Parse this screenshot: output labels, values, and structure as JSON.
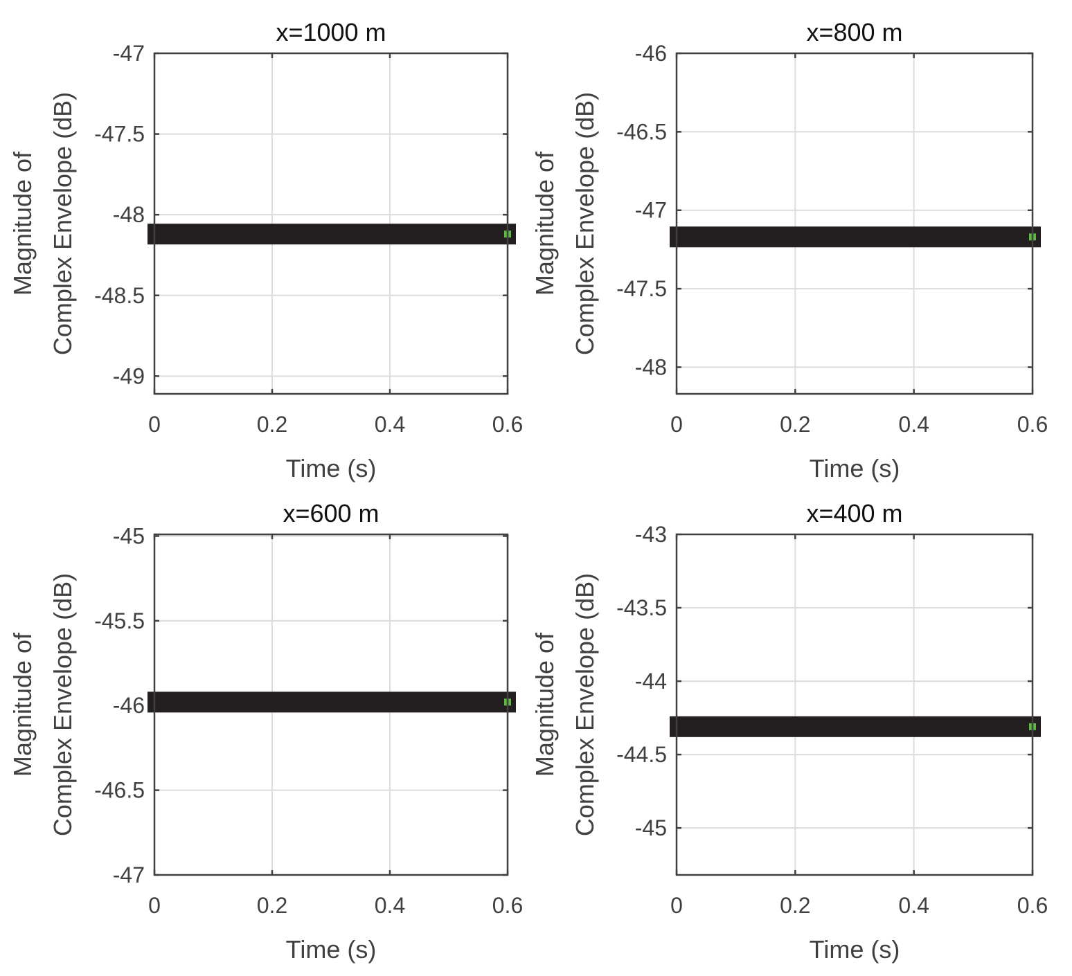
{
  "chart_data": [
    {
      "type": "line",
      "title": "x=1000 m",
      "xlabel": "Time (s)",
      "ylabel_lines": [
        "Magnitude of",
        "Complex Envelope (dB)"
      ],
      "xlim": [
        0,
        0.6
      ],
      "ylim": [
        -49.11,
        -47
      ],
      "xticks": [
        0,
        0.2,
        0.4,
        0.6
      ],
      "xtick_labels": [
        "0",
        "0.2",
        "0.4",
        "0.6"
      ],
      "yticks": [
        -47,
        -47.5,
        -48,
        -48.5,
        -49
      ],
      "ytick_labels": [
        "-47",
        "-47.5",
        "-48",
        "-48.5",
        "-49"
      ],
      "grid": true,
      "series": [
        {
          "name": "envelope",
          "color": "#231f20",
          "x": [
            0,
            0.6
          ],
          "y": [
            -48.12,
            -48.12
          ]
        },
        {
          "name": "marker",
          "color": "#5cb83f",
          "x": [
            0.6
          ],
          "y": [
            -48.12
          ]
        }
      ]
    },
    {
      "type": "line",
      "title": "x=800 m",
      "xlabel": "Time (s)",
      "ylabel_lines": [
        "Magnitude of",
        "Complex Envelope (dB)"
      ],
      "xlim": [
        0,
        0.6
      ],
      "ylim": [
        -48.17,
        -46
      ],
      "xticks": [
        0,
        0.2,
        0.4,
        0.6
      ],
      "xtick_labels": [
        "0",
        "0.2",
        "0.4",
        "0.6"
      ],
      "yticks": [
        -46,
        -46.5,
        -47,
        -47.5,
        -48
      ],
      "ytick_labels": [
        "-46",
        "-46.5",
        "-47",
        "-47.5",
        "-48"
      ],
      "grid": true,
      "series": [
        {
          "name": "envelope",
          "color": "#231f20",
          "x": [
            0,
            0.6
          ],
          "y": [
            -47.17,
            -47.17
          ]
        },
        {
          "name": "marker",
          "color": "#5cb83f",
          "x": [
            0.6
          ],
          "y": [
            -47.17
          ]
        }
      ]
    },
    {
      "type": "line",
      "title": "x=600 m",
      "xlabel": "Time (s)",
      "ylabel_lines": [
        "Magnitude of",
        "Complex Envelope (dB)"
      ],
      "xlim": [
        0,
        0.6
      ],
      "ylim": [
        -47,
        -44.99
      ],
      "xticks": [
        0,
        0.2,
        0.4,
        0.6
      ],
      "xtick_labels": [
        "0",
        "0.2",
        "0.4",
        "0.6"
      ],
      "yticks": [
        -45,
        -45.5,
        -46,
        -46.5,
        -47
      ],
      "ytick_labels": [
        "-45",
        "-45.5",
        "-46",
        "-46.5",
        "-47"
      ],
      "grid": true,
      "series": [
        {
          "name": "envelope",
          "color": "#231f20",
          "x": [
            0,
            0.6
          ],
          "y": [
            -45.98,
            -45.98
          ]
        },
        {
          "name": "marker",
          "color": "#5cb83f",
          "x": [
            0.6
          ],
          "y": [
            -45.98
          ]
        }
      ]
    },
    {
      "type": "line",
      "title": "x=400 m",
      "xlabel": "Time (s)",
      "ylabel_lines": [
        "Magnitude of",
        "Complex Envelope (dB)"
      ],
      "xlim": [
        0,
        0.6
      ],
      "ylim": [
        -45.32,
        -43
      ],
      "xticks": [
        0,
        0.2,
        0.4,
        0.6
      ],
      "xtick_labels": [
        "0",
        "0.2",
        "0.4",
        "0.6"
      ],
      "yticks": [
        -43,
        -43.5,
        -44,
        -44.5,
        -45
      ],
      "ytick_labels": [
        "-43",
        "-43.5",
        "-44",
        "-44.5",
        "-45"
      ],
      "grid": true,
      "series": [
        {
          "name": "envelope",
          "color": "#231f20",
          "x": [
            0,
            0.6
          ],
          "y": [
            -44.31,
            -44.31
          ]
        },
        {
          "name": "marker",
          "color": "#5cb83f",
          "x": [
            0.6
          ],
          "y": [
            -44.31
          ]
        }
      ]
    }
  ]
}
